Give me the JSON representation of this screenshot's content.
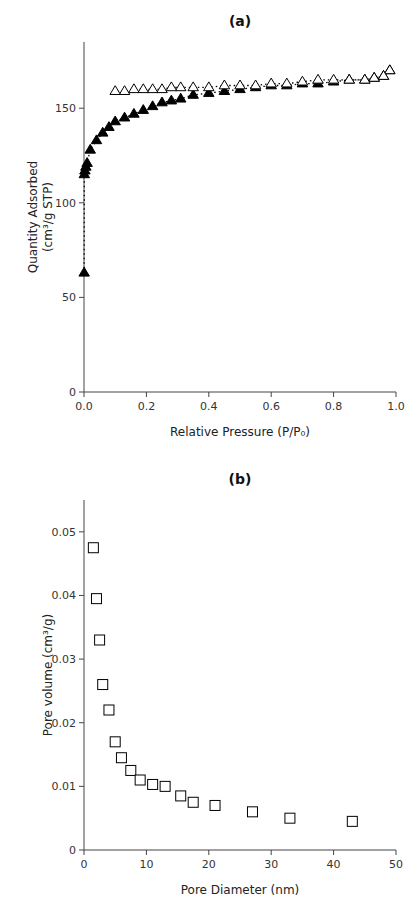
{
  "chart_data": [
    {
      "type": "line",
      "title": "(a)",
      "x_label": "Relative Pressure (P/P₀)",
      "y_label": "Quantity Adsorbed\n(cm³/g STP)",
      "series": [
        {
          "color": "black",
          "marker": "triangle",
          "line_style": "dotted",
          "x": [
            0.0005,
            0.001,
            0.003,
            0.006,
            0.01,
            0.02,
            0.04,
            0.06,
            0.08,
            0.1,
            0.13,
            0.16,
            0.19,
            0.22,
            0.25,
            0.28,
            0.31,
            0.35,
            0.4,
            0.45,
            0.5,
            0.55,
            0.6,
            0.65,
            0.7,
            0.75,
            0.8,
            0.85,
            0.9,
            0.93,
            0.96,
            0.98
          ],
          "values": [
            63,
            115,
            117,
            119,
            121,
            128,
            133,
            137,
            140,
            143,
            145,
            147,
            149,
            151,
            153,
            154,
            155,
            157,
            158,
            159,
            160,
            161,
            162,
            162,
            163,
            163,
            164,
            165,
            165,
            166,
            167,
            170
          ]
        },
        {
          "color": "black",
          "marker": "triangle-open",
          "line_style": "dotted",
          "x": [
            0.98,
            0.96,
            0.93,
            0.9,
            0.85,
            0.8,
            0.75,
            0.7,
            0.65,
            0.6,
            0.55,
            0.5,
            0.45,
            0.4,
            0.35,
            0.31,
            0.28,
            0.25,
            0.22,
            0.19,
            0.16,
            0.13,
            0.1
          ],
          "values": [
            170,
            167,
            166,
            165,
            165,
            165,
            165,
            164,
            163,
            163,
            162,
            162,
            162,
            161,
            161,
            161,
            161,
            160,
            160,
            160,
            160,
            159,
            159
          ]
        }
      ],
      "xlim": [
        0,
        1.0
      ],
      "xticks": [
        {
          "value": 0.0,
          "label": "0.0"
        },
        0.2,
        0.4,
        0.6,
        0.8,
        {
          "value": 1.0,
          "label": "1.0"
        }
      ],
      "ylim": [
        0,
        185
      ],
      "yticks": [
        0,
        50,
        100,
        150
      ],
      "grid": false
    },
    {
      "type": "scatter",
      "title": "(b)",
      "x_label": "Pore Diameter (nm)",
      "y_label": "Pore volume (cm³/g)",
      "series": [
        {
          "color": "black",
          "marker": "square-open",
          "x": [
            1.5,
            2.0,
            2.5,
            3.0,
            4.0,
            5.0,
            6.0,
            7.5,
            9.0,
            11.0,
            13.0,
            15.5,
            17.5,
            21.0,
            27.0,
            33.0,
            43.0
          ],
          "values": [
            0.0475,
            0.0395,
            0.033,
            0.026,
            0.022,
            0.017,
            0.0145,
            0.0125,
            0.011,
            0.0103,
            0.01,
            0.0085,
            0.0075,
            0.007,
            0.006,
            0.005,
            0.0045
          ]
        }
      ],
      "xlim": [
        0,
        50
      ],
      "xticks": [
        0,
        10,
        20,
        30,
        40,
        50
      ],
      "ylim": [
        0,
        0.055
      ],
      "yticks": [
        0,
        0.01,
        0.02,
        0.03,
        0.04,
        0.05
      ],
      "grid": false
    }
  ]
}
